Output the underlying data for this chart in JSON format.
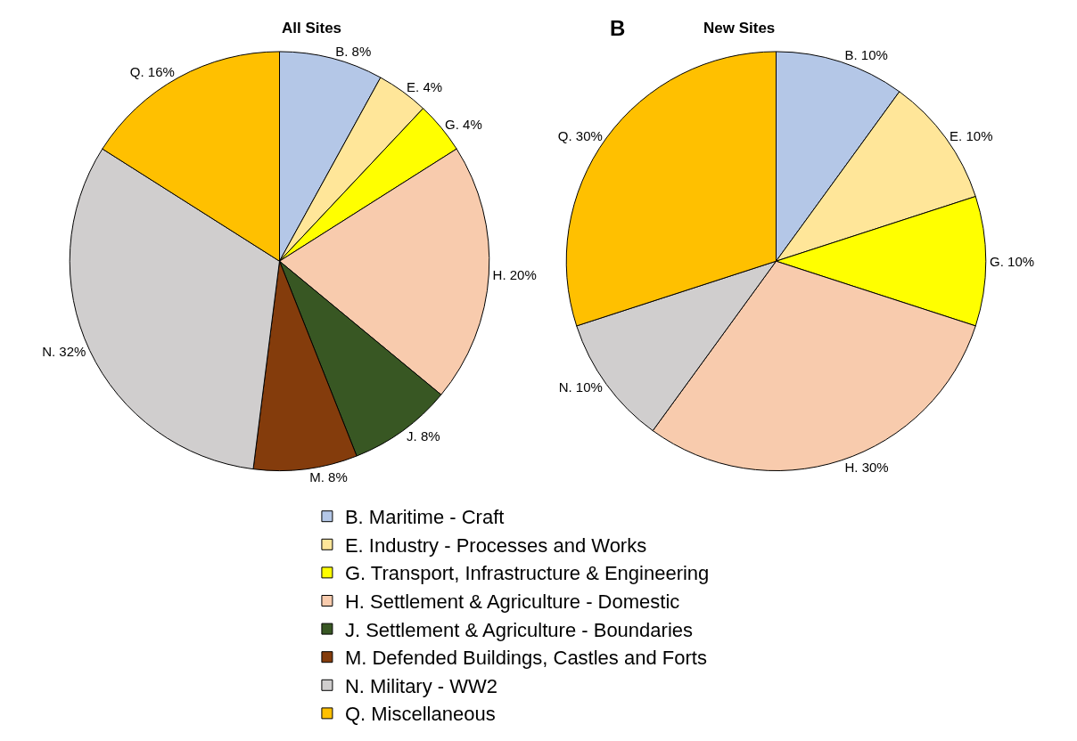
{
  "chart_data": [
    {
      "type": "pie",
      "title": "All Sites",
      "categories": [
        "B. Maritime - Craft",
        "E. Industry - Processes and Works",
        "G. Transport, Infrastructure & Engineering",
        "H. Settlement & Agriculture - Domestic",
        "J. Settlement & Agriculture - Boundaries",
        "M. Defended Buildings, Castles and Forts",
        "N. Military - WW2",
        "Q. Miscellaneous"
      ],
      "values": [
        8,
        4,
        4,
        20,
        8,
        8,
        32,
        16
      ],
      "value_labels": [
        "B. 8%",
        "E. 4%",
        "G. 4%",
        "H. 20%",
        "J. 8%",
        "M. 8%",
        "N. 32%",
        "Q. 16%"
      ],
      "colors": [
        "#b4c7e7",
        "#ffe699",
        "#ffff00",
        "#f8cbad",
        "#385723",
        "#843c0c",
        "#d0cece",
        "#ffc000"
      ],
      "legend": "bottom"
    },
    {
      "type": "pie",
      "title": "New Sites",
      "annotations": [
        "B"
      ],
      "categories": [
        null,
        null,
        null,
        null,
        null,
        null
      ],
      "values": [
        10,
        10,
        10,
        30,
        10,
        30
      ],
      "value_labels": [
        "B. 10%",
        "E. 10%",
        "G. 10%",
        "H. 30%",
        "N. 10%",
        "Q. 30%"
      ],
      "colors": [
        "#b4c7e7",
        "#ffe699",
        "#ffff00",
        "#f8cbad",
        "#d0cece",
        "#ffc000"
      ]
    }
  ]
}
